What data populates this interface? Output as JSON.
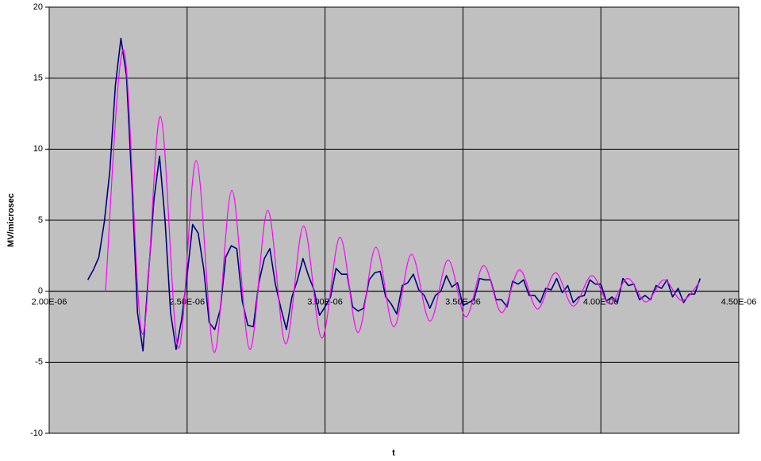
{
  "chart_data": {
    "type": "line",
    "x_label": "t",
    "y_label": "MV/microsec",
    "xlim": [
      2e-06,
      4.5e-06
    ],
    "ylim": [
      -10,
      20
    ],
    "xticks": [
      {
        "value": 2e-06,
        "label": "2.00E-06"
      },
      {
        "value": 2.5e-06,
        "label": "2.50E-06"
      },
      {
        "value": 3e-06,
        "label": "3.00E-06"
      },
      {
        "value": 3.5e-06,
        "label": "3.50E-06"
      },
      {
        "value": 4e-06,
        "label": "4.00E-06"
      },
      {
        "value": 4.5e-06,
        "label": "4.50E-06"
      }
    ],
    "yticks": [
      -10,
      -5,
      0,
      5,
      10,
      15,
      20
    ],
    "grid": true,
    "plot_background": "#c0c0c0",
    "series": [
      {
        "color": "#000080",
        "smooth": false,
        "x": [
          2.14e-06,
          2.16e-06,
          2.18e-06,
          2.2e-06,
          2.22e-06,
          2.24e-06,
          2.26e-06,
          2.28e-06,
          2.3e-06,
          2.32e-06,
          2.34e-06,
          2.36e-06,
          2.38e-06,
          2.4e-06,
          2.42e-06,
          2.44e-06,
          2.46e-06,
          2.48e-06,
          2.5e-06,
          2.52e-06,
          2.54e-06,
          2.56e-06,
          2.58e-06,
          2.6e-06,
          2.62e-06,
          2.64e-06,
          2.66e-06,
          2.68e-06,
          2.7e-06,
          2.72e-06,
          2.74e-06,
          2.76e-06,
          2.78e-06,
          2.8e-06,
          2.82e-06,
          2.84e-06,
          2.86e-06,
          2.88e-06,
          2.9e-06,
          2.92e-06,
          2.94e-06,
          2.96e-06,
          2.98e-06,
          3e-06,
          3.02e-06,
          3.04e-06,
          3.06e-06,
          3.08e-06,
          3.1e-06,
          3.12e-06,
          3.14e-06,
          3.16e-06,
          3.18e-06,
          3.2e-06,
          3.22e-06,
          3.24e-06,
          3.26e-06,
          3.28e-06,
          3.3e-06,
          3.32e-06,
          3.34e-06,
          3.36e-06,
          3.38e-06,
          3.4e-06,
          3.42e-06,
          3.44e-06,
          3.46e-06,
          3.48e-06,
          3.5e-06,
          3.52e-06,
          3.54e-06,
          3.56e-06,
          3.58e-06,
          3.6e-06,
          3.62e-06,
          3.64e-06,
          3.66e-06,
          3.68e-06,
          3.7e-06,
          3.72e-06,
          3.74e-06,
          3.76e-06,
          3.78e-06,
          3.8e-06,
          3.82e-06,
          3.84e-06,
          3.86e-06,
          3.88e-06,
          3.9e-06,
          3.92e-06,
          3.94e-06,
          3.96e-06,
          3.98e-06,
          4e-06,
          4.02e-06,
          4.04e-06,
          4.06e-06,
          4.08e-06,
          4.1e-06,
          4.12e-06,
          4.14e-06,
          4.16e-06,
          4.18e-06,
          4.2e-06,
          4.22e-06,
          4.24e-06,
          4.26e-06,
          4.28e-06,
          4.3e-06,
          4.32e-06,
          4.34e-06,
          4.36e-06
        ],
        "values": [
          0.8,
          1.5,
          2.4,
          4.9,
          8.5,
          14.5,
          17.8,
          15.2,
          7.5,
          -1.5,
          -4.2,
          1.2,
          6.5,
          9.5,
          5.0,
          -1.5,
          -4.1,
          -2.0,
          1.1,
          4.7,
          4.1,
          1.6,
          -2.2,
          -2.7,
          -1.3,
          2.4,
          3.2,
          3.0,
          -0.7,
          -2.4,
          -2.5,
          0.6,
          2.3,
          3.0,
          0.5,
          -1.2,
          -2.7,
          -0.4,
          0.8,
          2.3,
          1.1,
          0.1,
          -1.7,
          -1.1,
          -0.4,
          1.6,
          1.2,
          1.2,
          -1.1,
          -1.4,
          -1.2,
          0.8,
          1.3,
          1.4,
          -0.4,
          -0.9,
          -1.6,
          0.4,
          0.6,
          1.2,
          0.1,
          -0.3,
          -1.2,
          -0.3,
          0.0,
          1.1,
          0.3,
          0.6,
          -1.0,
          -0.8,
          -0.6,
          0.9,
          0.8,
          0.8,
          -0.6,
          -0.6,
          -1.1,
          0.7,
          0.5,
          0.8,
          -0.3,
          -0.3,
          -0.8,
          0.2,
          0.1,
          0.9,
          -0.1,
          0.4,
          -0.8,
          -0.4,
          -0.3,
          0.8,
          0.5,
          0.5,
          -0.7,
          -0.4,
          -0.8,
          0.9,
          0.4,
          0.5,
          -0.6,
          -0.3,
          -0.6,
          0.4,
          0.2,
          0.8,
          -0.4,
          0.2,
          -0.8,
          -0.2,
          -0.2,
          0.9
        ]
      },
      {
        "color": "#ff00ff",
        "smooth": true,
        "x": [
          2.204e-06,
          2.27e-06,
          2.337e-06,
          2.403e-06,
          2.468e-06,
          2.533e-06,
          2.598e-06,
          2.662e-06,
          2.727e-06,
          2.792e-06,
          2.857e-06,
          2.922e-06,
          2.988e-06,
          3.054e-06,
          3.119e-06,
          3.184e-06,
          3.249e-06,
          3.313e-06,
          3.38e-06,
          3.446e-06,
          3.51e-06,
          3.575e-06,
          3.64e-06,
          3.705e-06,
          3.77e-06,
          3.835e-06,
          3.9e-06,
          3.967e-06,
          4.032e-06,
          4.097e-06,
          4.163e-06,
          4.229e-06,
          4.293e-06,
          4.356e-06
        ],
        "values": [
          0,
          17,
          -3.0,
          12.3,
          -4.0,
          9.2,
          -4.3,
          7.1,
          -4.1,
          5.7,
          -3.7,
          4.6,
          -3.3,
          3.8,
          -2.9,
          3.1,
          -2.5,
          2.6,
          -2.1,
          2.2,
          -1.8,
          1.8,
          -1.5,
          1.5,
          -1.25,
          1.3,
          -1.05,
          1.1,
          -0.9,
          0.9,
          -0.75,
          0.8,
          -0.65,
          0.6
        ]
      }
    ]
  }
}
